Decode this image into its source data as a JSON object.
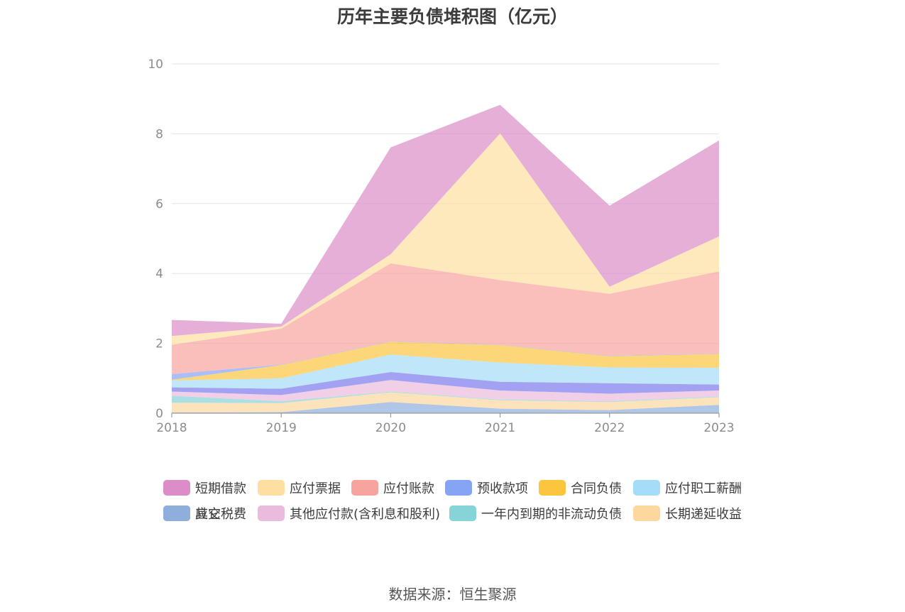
{
  "chart_data": {
    "type": "area",
    "stacked": true,
    "title": "历年主要负债堆积图（亿元）",
    "x": [
      "2018",
      "2019",
      "2020",
      "2021",
      "2022",
      "2023"
    ],
    "y_ticks": [
      "0",
      "2",
      "4",
      "6",
      "8",
      "10"
    ],
    "ylim": [
      0,
      10
    ],
    "grid": true,
    "legend_position": "bottom",
    "series": [
      {
        "name": "其它",
        "color": "#8eaedb",
        "values": [
          0.02,
          0.03,
          0.32,
          0.13,
          0.09,
          0.24
        ]
      },
      {
        "name": "长期递延收益",
        "color": "#fcd79e",
        "values": [
          0.28,
          0.26,
          0.28,
          0.24,
          0.23,
          0.22
        ]
      },
      {
        "name": "一年内到期的非流动负债",
        "color": "#86d3d8",
        "values": [
          0.2,
          0.05,
          0.02,
          0.02,
          0.02,
          0.02
        ]
      },
      {
        "name": "其他应付款(含利息和股利)",
        "color": "#ebbbdd",
        "values": [
          0.12,
          0.18,
          0.33,
          0.26,
          0.22,
          0.17
        ]
      },
      {
        "name": "应交税费",
        "color": "#7b79ec",
        "values": [
          0.12,
          0.18,
          0.23,
          0.25,
          0.3,
          0.17
        ]
      },
      {
        "name": "应付职工薪酬",
        "color": "#a5dcf8",
        "values": [
          0.2,
          0.3,
          0.5,
          0.55,
          0.45,
          0.48
        ]
      },
      {
        "name": "合同负债",
        "color": "#fbc53e",
        "values": [
          0.02,
          0.38,
          0.37,
          0.5,
          0.32,
          0.4
        ]
      },
      {
        "name": "预收款项",
        "color": "#86a4f6",
        "values": [
          0.16,
          0.01,
          0.01,
          0.01,
          0.01,
          0.01
        ]
      },
      {
        "name": "应付账款",
        "color": "#f8a49e",
        "values": [
          0.84,
          1.03,
          2.23,
          1.85,
          1.78,
          2.35
        ]
      },
      {
        "name": "应付票据",
        "color": "#fedfa1",
        "values": [
          0.25,
          0.06,
          0.26,
          4.2,
          0.2,
          1.0
        ]
      },
      {
        "name": "短期借款",
        "color": "#dc8dc7",
        "values": [
          0.46,
          0.08,
          3.06,
          0.82,
          2.32,
          2.75
        ]
      }
    ]
  },
  "legend": [
    {
      "label": "短期借款",
      "color": "#dc8dc7"
    },
    {
      "label": "应付票据",
      "color": "#fedfa1"
    },
    {
      "label": "应付账款",
      "color": "#f8a49e"
    },
    {
      "label": "预收款项",
      "color": "#86a4f6"
    },
    {
      "label": "合同负债",
      "color": "#fbc53e"
    },
    {
      "label": "应付职工薪酬",
      "color": "#a5dcf8"
    },
    {
      "label": "应交税费",
      "color": "#7b79ec"
    },
    {
      "label": "其他应付款(含利息和股利)",
      "color": "#ebbbdd"
    },
    {
      "label": "一年内到期的非流动负债",
      "color": "#86d3d8"
    },
    {
      "label": "长期递延收益",
      "color": "#fcd79e"
    },
    {
      "label": "其它",
      "color": "#8eaedb"
    }
  ],
  "source": "数据来源：恒生聚源"
}
